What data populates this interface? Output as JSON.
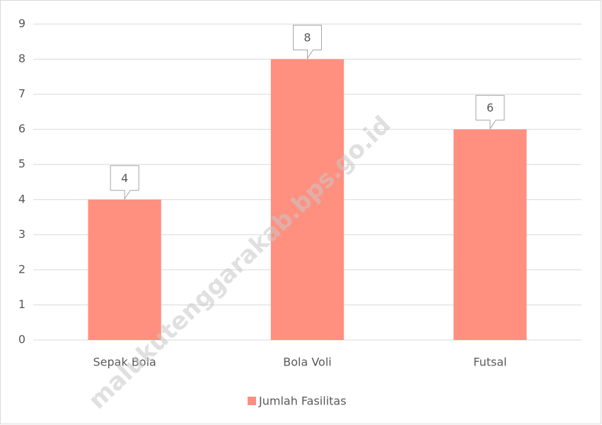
{
  "chart_data": {
    "type": "bar",
    "categories": [
      "Sepak Bola",
      "Bola Voli",
      "Futsal"
    ],
    "series": [
      {
        "name": "Jumlah Fasilitas",
        "color": "#ff9080",
        "values": [
          4,
          8,
          6
        ]
      }
    ],
    "ylim": [
      0,
      9
    ],
    "yticks": [
      0,
      1,
      2,
      3,
      4,
      5,
      6,
      7,
      8,
      9
    ],
    "grid": true,
    "legend": "bottom",
    "data_labels": true,
    "watermark": "malukutenggarakab.bps.go.id"
  }
}
